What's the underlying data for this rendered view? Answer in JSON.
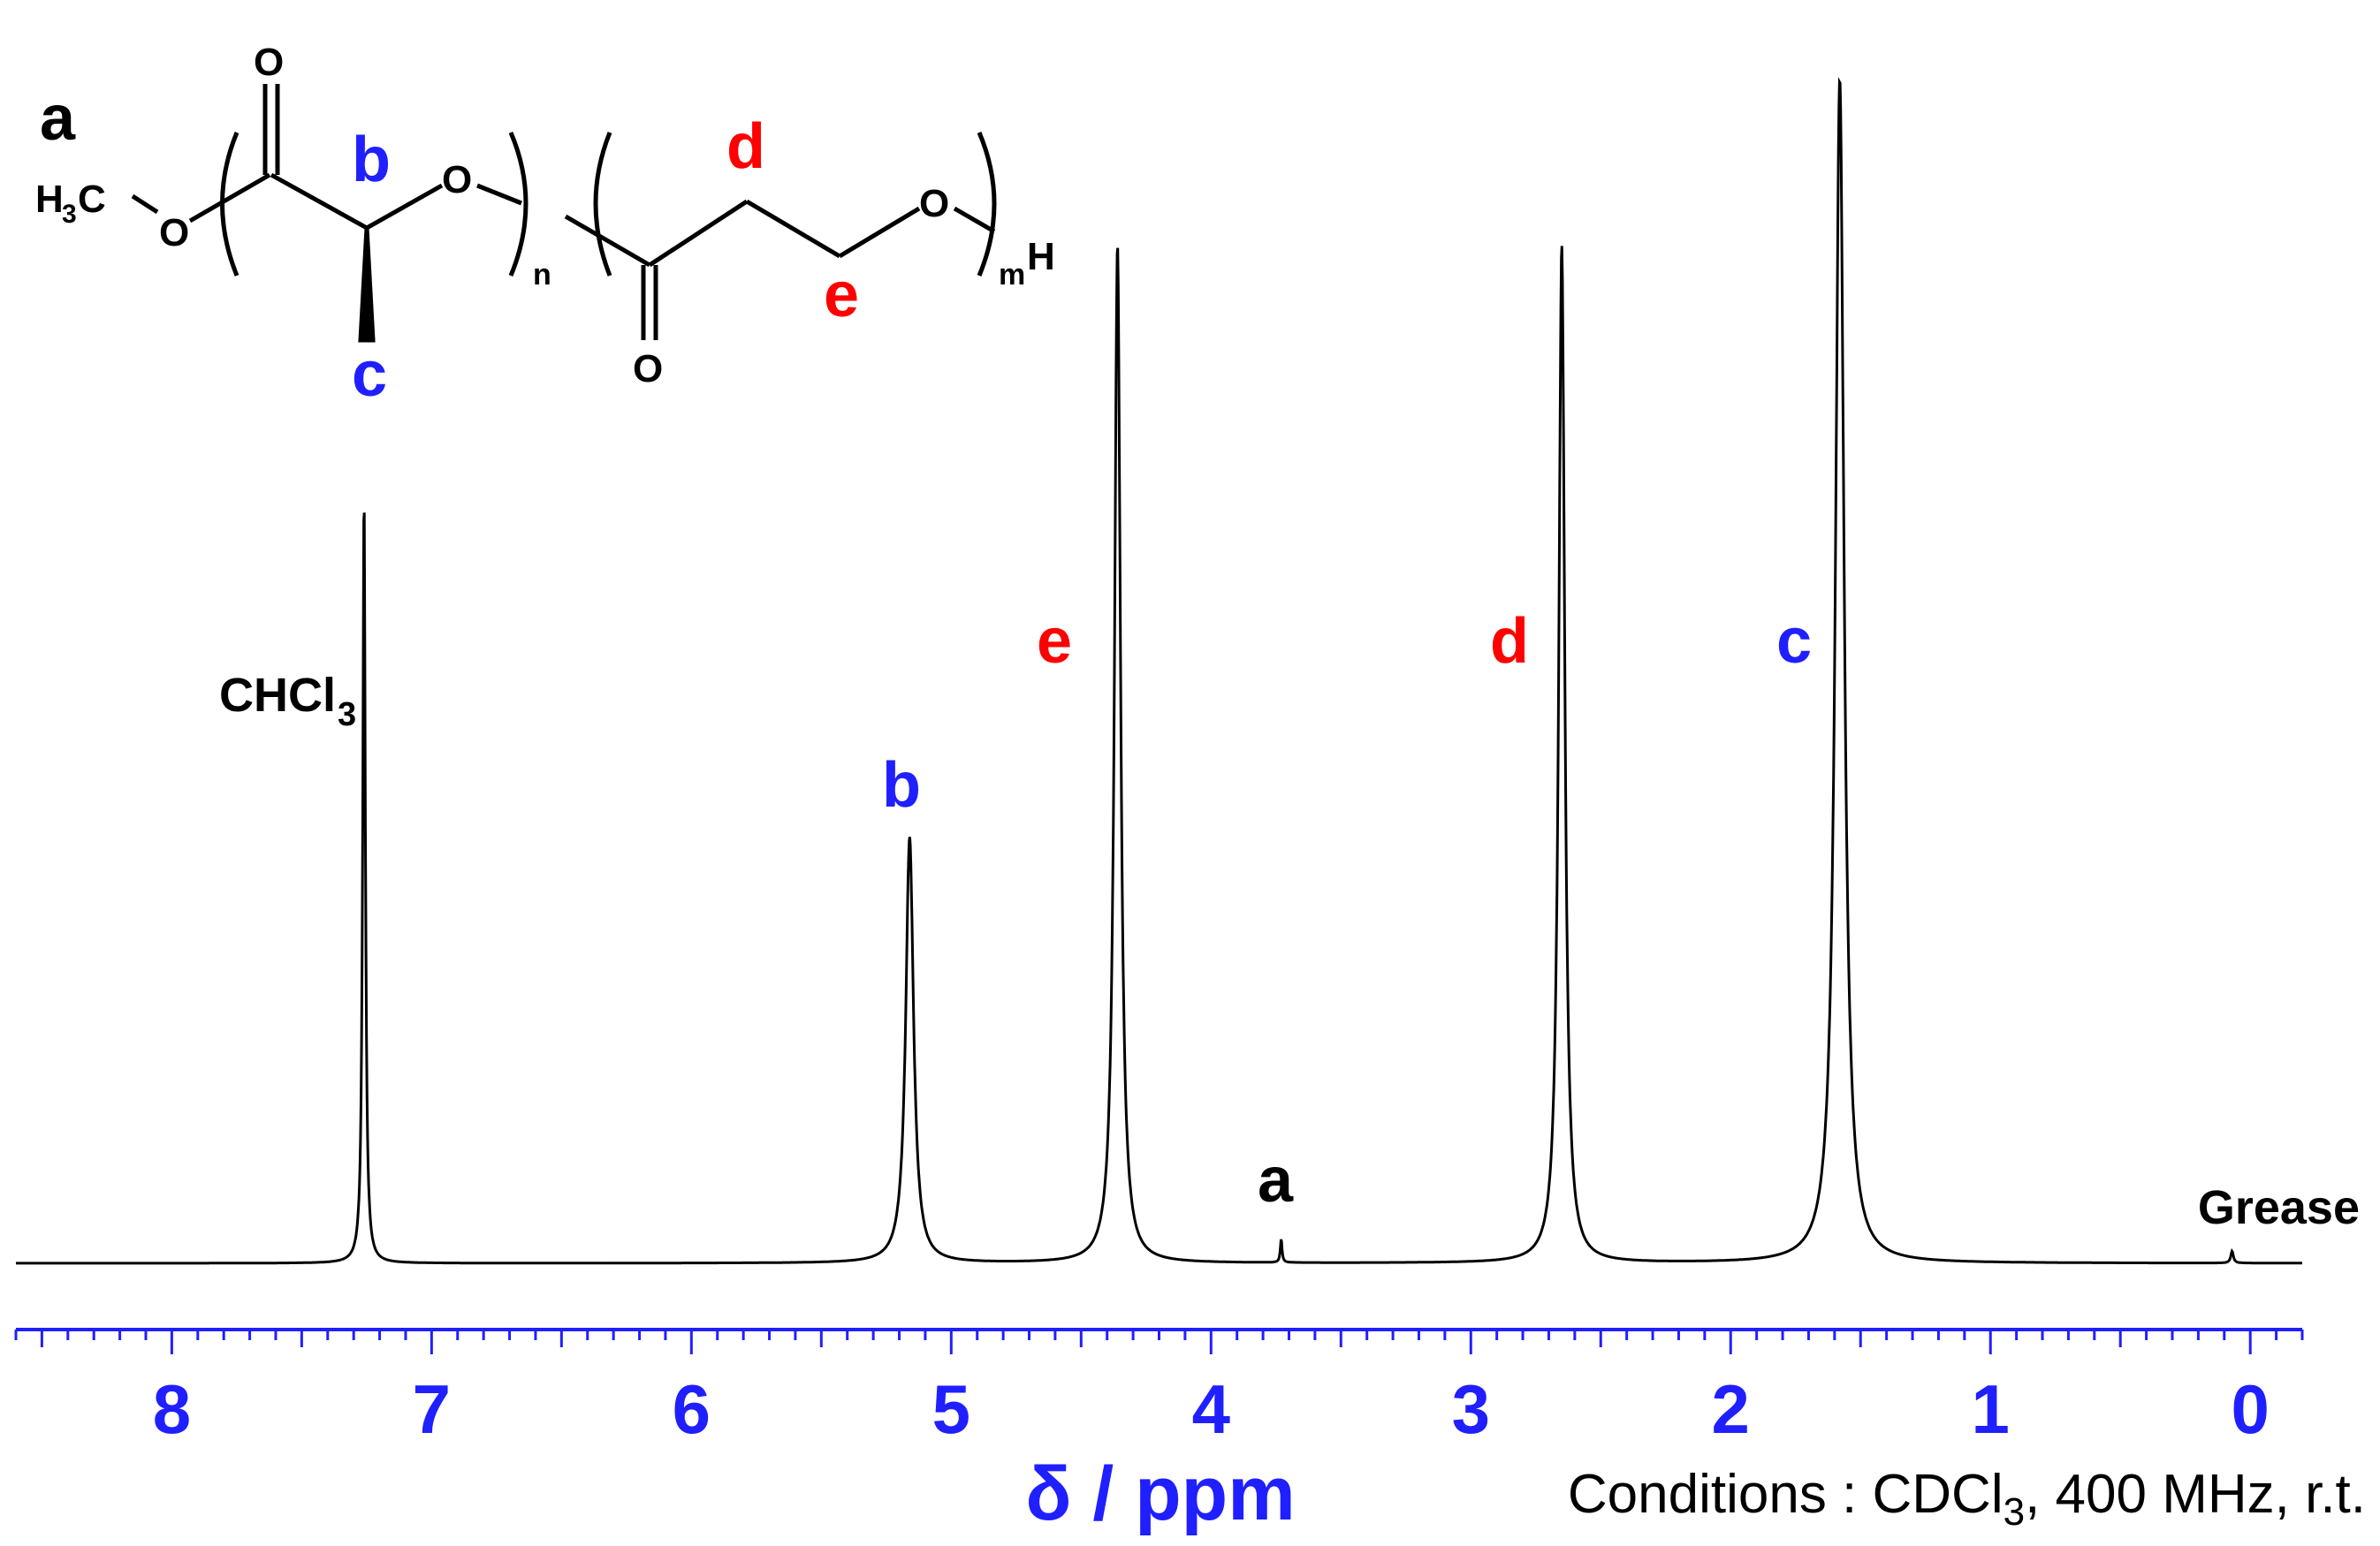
{
  "chart_data": {
    "type": "line",
    "title": "",
    "xlabel": "δ / ppm",
    "ylabel": "",
    "xlim": [
      8.6,
      -0.2
    ],
    "x_reversed": true,
    "x_ticks": [
      "8",
      "7",
      "6",
      "5",
      "4",
      "3",
      "2",
      "1",
      "0"
    ],
    "conditions_prefix": "Conditions : CDCl",
    "conditions_sub": "3",
    "conditions_suffix": ", 400 MHz, r.t.",
    "series_color": "#000000",
    "axis_color": "#1f1fff",
    "peaks": [
      {
        "label": "CHCl",
        "label_sub": "3",
        "ppm": 7.26,
        "relative_intensity": 0.65,
        "color": "#000000"
      },
      {
        "label": "b",
        "ppm": 5.16,
        "relative_intensity": 0.36,
        "color": "#1f1fff"
      },
      {
        "label": "e",
        "ppm": 4.36,
        "relative_intensity": 0.86,
        "color": "#ff0000"
      },
      {
        "label": "a",
        "ppm": 3.73,
        "relative_intensity": 0.02,
        "color": "#000000"
      },
      {
        "label": "d",
        "ppm": 2.65,
        "relative_intensity": 0.86,
        "color": "#ff0000"
      },
      {
        "label": "c",
        "ppm": 1.58,
        "relative_intensity": 1.0,
        "color": "#1f1fff"
      },
      {
        "label": "Grease",
        "ppm": 0.07,
        "relative_intensity": 0.01,
        "color": "#000000"
      }
    ]
  },
  "structure": {
    "end_group": "a",
    "methyl": "H",
    "methyl_sub": "3",
    "methyl_c": "C",
    "oxygen": "O",
    "hydrogen": "H",
    "repeat_n": "n",
    "repeat_m": "m",
    "labels": {
      "b": "b",
      "c": "c",
      "d": "d",
      "e": "e"
    }
  }
}
